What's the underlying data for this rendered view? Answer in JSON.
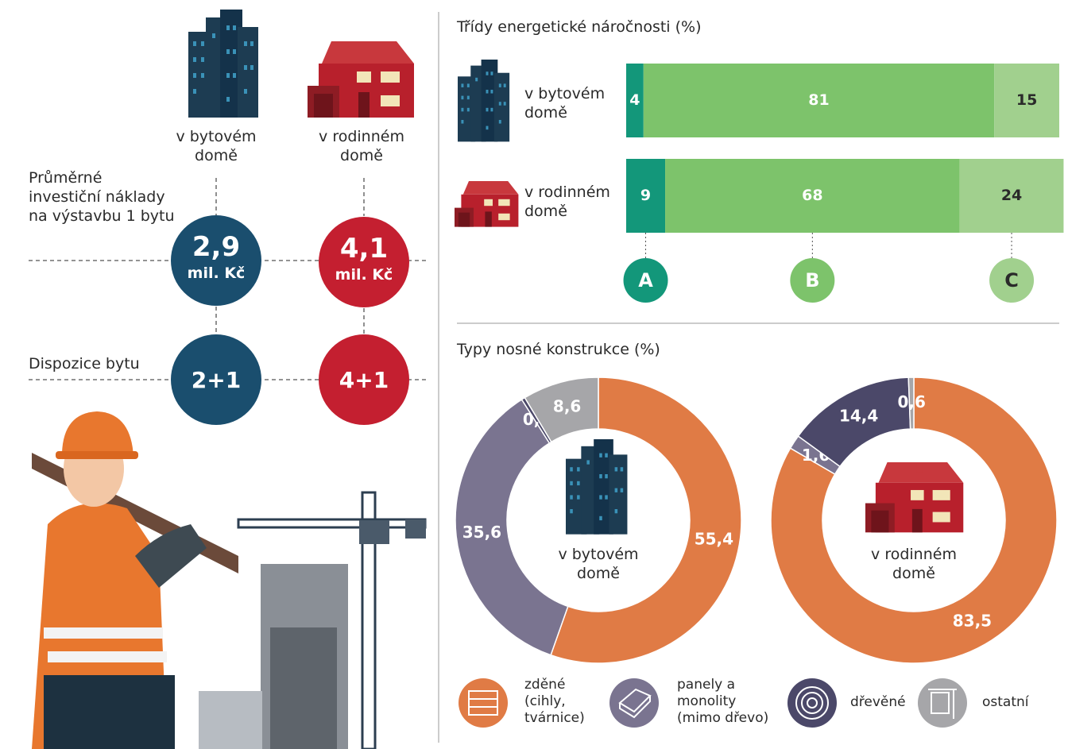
{
  "infographic": {
    "types": [
      "v bytovém domě",
      "v rodinném domě"
    ],
    "rows": [
      {
        "label": "Průměrné investiční náklady na výstavbu 1 bytu",
        "values": [
          "2,9",
          "4,1"
        ],
        "unit": "mil. Kč"
      },
      {
        "label": "Dispozice bytu",
        "values": [
          "2+1",
          "4+1"
        ]
      }
    ]
  },
  "chart_data": [
    {
      "type": "stacked-bar",
      "title": "Třídy energetické náročnosti (%)",
      "categories": [
        "v bytovém domě",
        "v rodinném domě"
      ],
      "xlim": [
        0,
        100
      ],
      "series": [
        {
          "name": "A",
          "color": "#13977a",
          "values": [
            4,
            9
          ]
        },
        {
          "name": "B",
          "color": "#7dc36b",
          "values": [
            81,
            68
          ]
        },
        {
          "name": "C",
          "color": "#a1d08e",
          "values": [
            15,
            24
          ]
        }
      ]
    },
    {
      "type": "donut",
      "title": "Typy nosné konstrukce (%)",
      "categories": [
        "zděné (cihly, tvárnice)",
        "panely a monolity (mimo dřevo)",
        "dřevěné",
        "ostatní"
      ],
      "colors": [
        "#e07b45",
        "#7a7490",
        "#4b4869",
        "#a6a6a9"
      ],
      "series": [
        {
          "name": "v bytovém domě",
          "values": [
            55.4,
            35.6,
            0.4,
            8.6
          ],
          "value_labels": [
            "55,4",
            "35,6",
            "0,4",
            "8,6"
          ]
        },
        {
          "name": "v rodinném domě",
          "values": [
            83.5,
            1.6,
            14.4,
            0.6
          ],
          "value_labels": [
            "83,5",
            "1,6",
            "14,4",
            "0,6"
          ]
        }
      ]
    }
  ]
}
